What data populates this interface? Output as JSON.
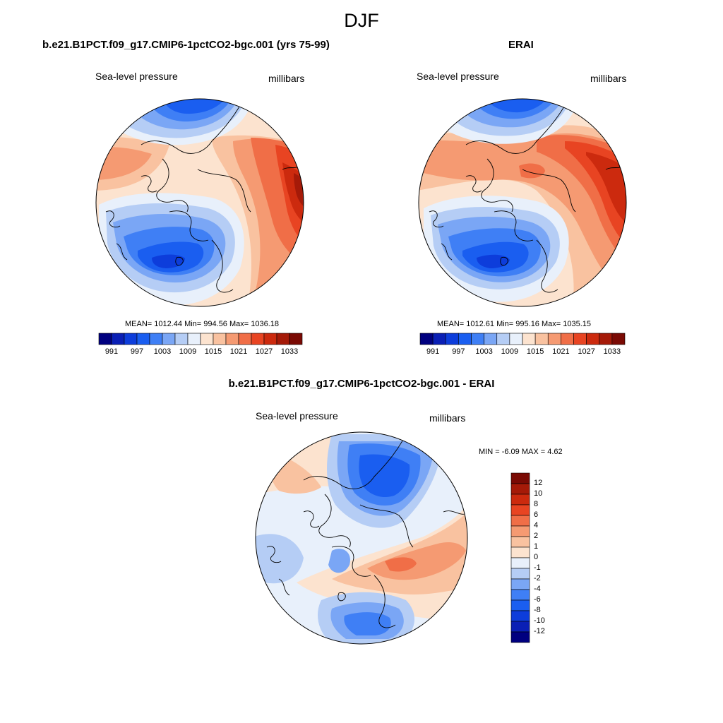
{
  "figure": {
    "title": "DJF"
  },
  "panels": {
    "model": {
      "title": "b.e21.B1PCT.f09_g17.CMIP6-1pctCO2-bgc.001 (yrs 75-99)",
      "left_label": "Sea-level pressure",
      "right_label": "millibars",
      "stats": "MEAN= 1012.44  Min= 994.56  Max= 1036.18"
    },
    "obs": {
      "title": "ERAI",
      "left_label": "Sea-level pressure",
      "right_label": "millibars",
      "stats": "MEAN= 1012.61  Min= 995.16  Max= 1035.15"
    },
    "diff": {
      "title": "b.e21.B1PCT.f09_g17.CMIP6-1pctCO2-bgc.001 - ERAI",
      "left_label": "Sea-level pressure",
      "right_label": "millibars",
      "stats": "MIN =  -6.09 MAX =   4.62"
    }
  },
  "colorbar_abs": {
    "colors": [
      "#00007f",
      "#0a1fb5",
      "#0d3ddb",
      "#1a5ef0",
      "#3f7ff5",
      "#7aa6f5",
      "#b5cdf5",
      "#e8f0fb",
      "#fce3cf",
      "#f9c2a0",
      "#f59a72",
      "#f06e47",
      "#e84422",
      "#cc2a0e",
      "#a51a08",
      "#7a0a04"
    ],
    "labels": [
      "991",
      "997",
      "1003",
      "1009",
      "1015",
      "1021",
      "1027",
      "1033"
    ]
  },
  "colorbar_diff": {
    "colors": [
      "#7a0a04",
      "#a51a08",
      "#cc2a0e",
      "#e84422",
      "#f06e47",
      "#f59a72",
      "#f9c2a0",
      "#fce3cf",
      "#e8f0fb",
      "#b5cdf5",
      "#7aa6f5",
      "#3f7ff5",
      "#1a5ef0",
      "#0d3ddb",
      "#0a1fb5",
      "#00007f"
    ],
    "labels": [
      "12",
      "10",
      "8",
      "6",
      "4",
      "2",
      "1",
      "0",
      "-1",
      "-2",
      "-4",
      "-6",
      "-8",
      "-10",
      "-12"
    ]
  }
}
